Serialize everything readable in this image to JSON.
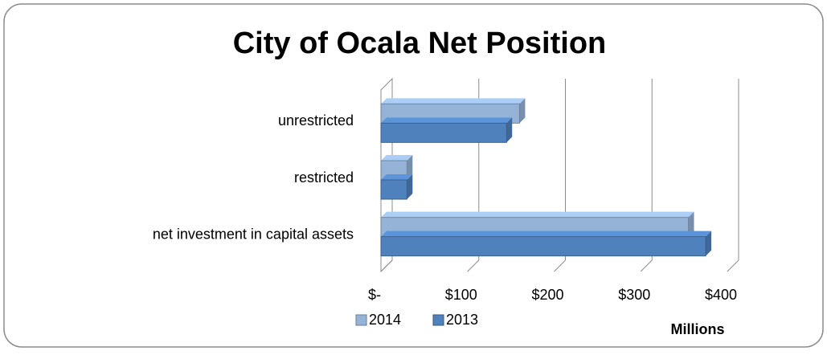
{
  "chart_data": {
    "type": "bar",
    "orientation": "horizontal",
    "title": "City of Ocala Net Position",
    "categories": [
      "unrestricted",
      "restricted",
      "net investment in capital assets"
    ],
    "series": [
      {
        "name": "2014",
        "color": "#95b3d7",
        "values": [
          160,
          30,
          355
        ]
      },
      {
        "name": "2013",
        "color": "#4f81bd",
        "values": [
          145,
          30,
          375
        ]
      }
    ],
    "xlim": [
      0,
      400
    ],
    "xticks": [
      {
        "value": 0,
        "label": "$-"
      },
      {
        "value": 100,
        "label": "$100"
      },
      {
        "value": 200,
        "label": "$200"
      },
      {
        "value": 300,
        "label": "$300"
      },
      {
        "value": 400,
        "label": "$400"
      }
    ],
    "xlabel": "Millions",
    "grid": true,
    "legend": "bottom"
  }
}
